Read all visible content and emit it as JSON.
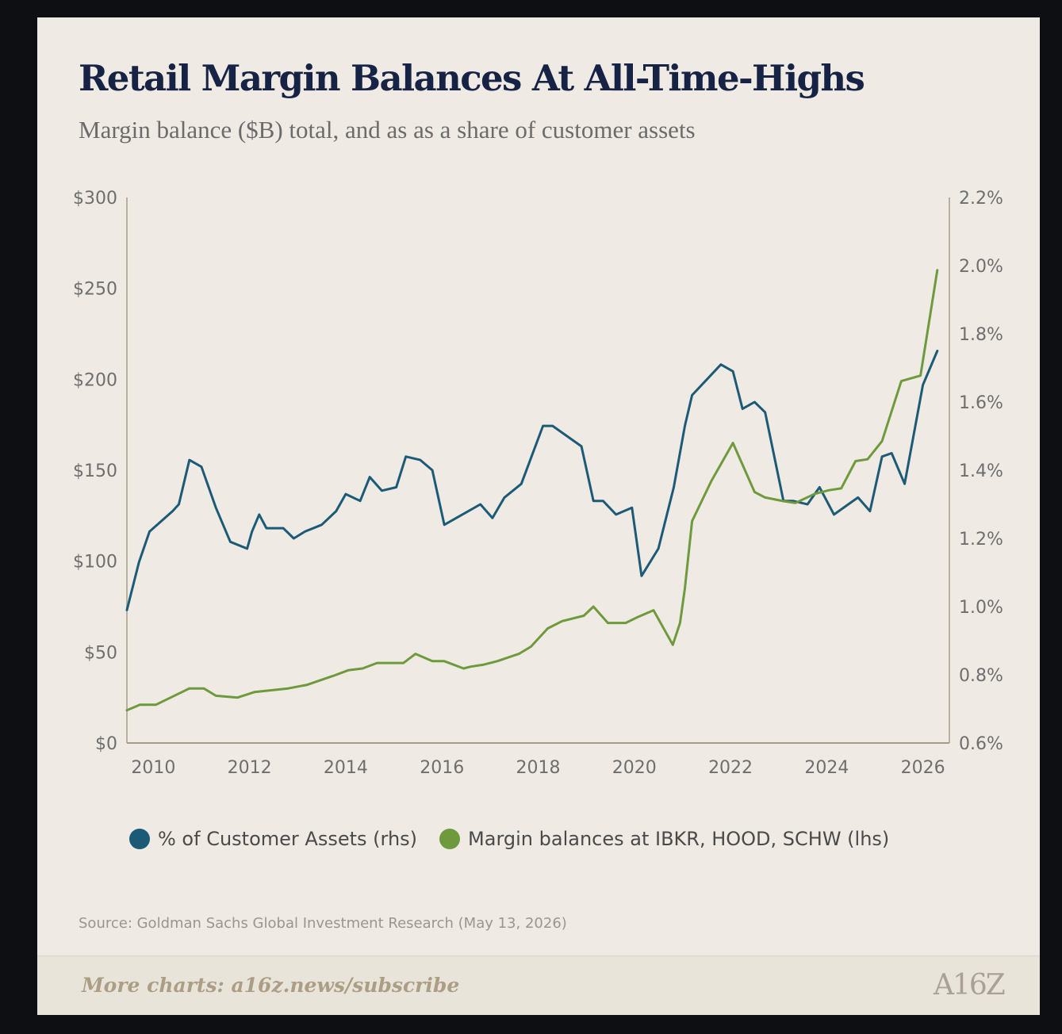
{
  "title": "Retail Margin Balances At All-Time-Highs",
  "subtitle": "Margin balance ($B) total, and as as a share of customer assets",
  "source": "Source: Goldman Sachs Global Investment Research (May 13, 2026)",
  "footer": {
    "link": "More charts: a16z.news/subscribe",
    "logo": "A16Z"
  },
  "colors": {
    "pct_series": "#1c5a76",
    "margin_series": "#6e9a3d",
    "axis": "#b8b1a3",
    "tick_text": "#6e6e6e"
  },
  "chart_data": {
    "type": "line",
    "x_ticks": [
      "2010",
      "2012",
      "2014",
      "2016",
      "2018",
      "2020",
      "2022",
      "2024",
      "2026"
    ],
    "xlim": [
      2009.45,
      2026.55
    ],
    "ylim_left": [
      0,
      300
    ],
    "ylim_right": [
      0.6,
      2.2
    ],
    "y_ticks_left": [
      "$0",
      "$50",
      "$100",
      "$150",
      "$200",
      "$250",
      "$300"
    ],
    "y_ticks_right": [
      "0.6%",
      "0.8%",
      "1.0%",
      "1.2%",
      "1.4%",
      "1.6%",
      "1.8%",
      "2.0%",
      "2.2%"
    ],
    "grid": false,
    "legend_position": "bottom",
    "series": [
      {
        "name": "% of Customer Assets (rhs)",
        "axis": "right",
        "x": [
          2009.45,
          2009.7,
          2009.92,
          2010.4,
          2010.53,
          2010.75,
          2011.0,
          2011.3,
          2011.6,
          2011.95,
          2012.05,
          2012.2,
          2012.35,
          2012.7,
          2012.92,
          2013.15,
          2013.5,
          2013.8,
          2014.0,
          2014.3,
          2014.5,
          2014.75,
          2015.05,
          2015.25,
          2015.55,
          2015.8,
          2016.05,
          2016.55,
          2016.8,
          2017.05,
          2017.3,
          2017.65,
          2018.1,
          2018.3,
          2018.9,
          2019.15,
          2019.35,
          2019.62,
          2019.95,
          2020.15,
          2020.5,
          2020.82,
          2021.05,
          2021.2,
          2021.8,
          2022.05,
          2022.25,
          2022.5,
          2022.72,
          2023.1,
          2023.3,
          2023.6,
          2023.85,
          2024.15,
          2024.45,
          2024.65,
          2024.9,
          2025.15,
          2025.35,
          2025.62,
          2026.0,
          2026.3
        ],
        "values": [
          0.99,
          1.13,
          1.22,
          1.28,
          1.3,
          1.43,
          1.41,
          1.29,
          1.19,
          1.17,
          1.22,
          1.27,
          1.23,
          1.23,
          1.2,
          1.22,
          1.24,
          1.28,
          1.33,
          1.31,
          1.38,
          1.34,
          1.35,
          1.44,
          1.43,
          1.4,
          1.24,
          1.28,
          1.3,
          1.26,
          1.32,
          1.36,
          1.53,
          1.53,
          1.47,
          1.31,
          1.31,
          1.27,
          1.29,
          1.09,
          1.17,
          1.35,
          1.53,
          1.62,
          1.71,
          1.69,
          1.58,
          1.6,
          1.57,
          1.31,
          1.31,
          1.3,
          1.35,
          1.27,
          1.3,
          1.32,
          1.28,
          1.44,
          1.45,
          1.36,
          1.65,
          1.75
        ]
      },
      {
        "name": "Margin balances at IBKR, HOOD, SCHW (lhs)",
        "axis": "left",
        "x": [
          2009.45,
          2009.72,
          2010.05,
          2010.75,
          2011.05,
          2011.3,
          2011.75,
          2012.1,
          2012.8,
          2013.2,
          2013.75,
          2014.05,
          2014.35,
          2014.65,
          2015.0,
          2015.2,
          2015.45,
          2015.8,
          2016.05,
          2016.45,
          2016.6,
          2016.85,
          2017.15,
          2017.6,
          2017.85,
          2018.2,
          2018.5,
          2018.95,
          2019.15,
          2019.45,
          2019.82,
          2020.05,
          2020.4,
          2020.8,
          2020.95,
          2021.05,
          2021.2,
          2021.6,
          2022.05,
          2022.5,
          2022.72,
          2023.1,
          2023.35,
          2023.75,
          2024.05,
          2024.3,
          2024.6,
          2024.85,
          2025.15,
          2025.55,
          2025.95,
          2026.3
        ],
        "values": [
          18,
          21,
          21,
          30,
          30,
          26,
          25,
          28,
          30,
          32,
          37,
          40,
          41,
          44,
          44,
          44,
          49,
          45,
          45,
          41,
          42,
          43,
          45,
          49,
          53,
          63,
          67,
          70,
          75,
          66,
          66,
          69,
          73,
          54,
          66,
          85,
          122,
          144,
          165,
          138,
          135,
          133,
          132,
          137,
          139,
          140,
          155,
          156,
          166,
          199,
          202,
          260
        ]
      }
    ]
  }
}
